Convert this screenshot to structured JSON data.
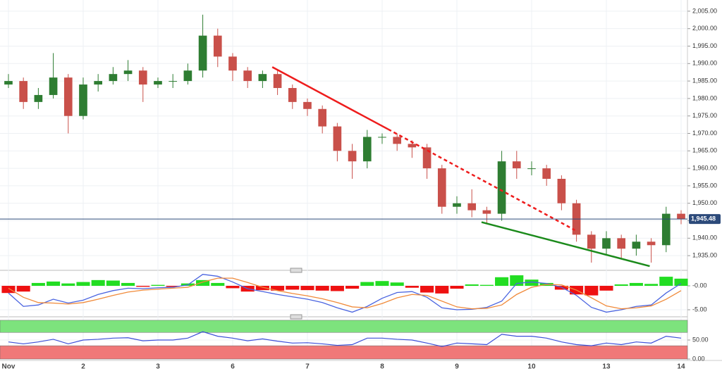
{
  "chart_data": [
    {
      "type": "candlestick",
      "x": [
        0,
        0.2,
        0.4,
        0.6,
        0.8,
        1,
        1.2,
        1.4,
        1.6,
        1.8,
        2,
        2.2,
        2.4,
        2.6,
        2.8,
        3,
        3.2,
        3.4,
        3.6,
        3.8,
        4,
        4.2,
        4.4,
        4.6,
        4.8,
        5,
        5.2,
        5.4,
        5.6,
        5.8,
        6,
        6.2,
        6.4,
        6.6,
        6.8,
        7,
        7.2,
        7.4,
        7.6,
        7.8,
        8,
        8.2,
        8.4,
        8.6,
        8.8,
        9
      ],
      "open": [
        1984,
        1985,
        1979,
        1981,
        1986,
        1975,
        1984,
        1985,
        1987,
        1988,
        1984,
        1985,
        1985,
        1988,
        1998,
        1992,
        1988,
        1985,
        1987,
        1983,
        1979,
        1977,
        1972,
        1965,
        1962,
        1969,
        1969,
        1967,
        1966,
        1960,
        1949,
        1950,
        1948,
        1947,
        1962,
        1960,
        1960,
        1957,
        1950,
        1941,
        1937,
        1940,
        1937,
        1939,
        1938,
        1947
      ],
      "high": [
        1987,
        1986,
        1983,
        1993,
        1987,
        1986,
        1987,
        1989,
        1991,
        1989,
        1986,
        1987,
        1990,
        2004,
        2000,
        1993,
        1989,
        1988,
        1988,
        1984,
        1980,
        1978,
        1973,
        1967,
        1971,
        1970,
        1970,
        1968,
        1967,
        1961,
        1952,
        1954,
        1949,
        1965,
        1965,
        1962,
        1961,
        1958,
        1951,
        1942,
        1942,
        1941,
        1941,
        1940,
        1949,
        1948
      ],
      "low": [
        1983,
        1977,
        1977,
        1980,
        1970,
        1974,
        1982,
        1984,
        1985,
        1979,
        1983,
        1983,
        1984,
        1986,
        1989,
        1985,
        1983,
        1983,
        1981,
        1977,
        1975,
        1970,
        1962,
        1957,
        1960,
        1967,
        1965,
        1963,
        1957,
        1947,
        1947,
        1946,
        1944,
        1945,
        1957,
        1958,
        1955,
        1948,
        1939,
        1933,
        1935,
        1934,
        1935,
        1933,
        1936,
        1944
      ],
      "close": [
        1985,
        1979,
        1981,
        1986,
        1975,
        1984,
        1985,
        1987,
        1988,
        1984,
        1985,
        1985,
        1988,
        1998,
        1992,
        1988,
        1985,
        1987,
        1983,
        1979,
        1977,
        1972,
        1965,
        1962,
        1969,
        1969,
        1967,
        1966,
        1960,
        1949,
        1950,
        1948,
        1947,
        1962,
        1960,
        1960,
        1957,
        1950,
        1941,
        1937,
        1940,
        1937,
        1939,
        1938,
        1947,
        1945.48
      ],
      "up_color": "#2e7d32",
      "down_color": "#c9504a",
      "xlim": [
        -0.113,
        9.085
      ],
      "xticks": [
        {
          "value": 0,
          "label": "Nov"
        },
        {
          "value": 1,
          "label": "2"
        },
        {
          "value": 2,
          "label": "3"
        },
        {
          "value": 3,
          "label": "6"
        },
        {
          "value": 4,
          "label": "7"
        },
        {
          "value": 5,
          "label": "8"
        },
        {
          "value": 6,
          "label": "9"
        },
        {
          "value": 7,
          "label": "10"
        },
        {
          "value": 8,
          "label": "13"
        },
        {
          "value": 9,
          "label": "14"
        }
      ],
      "ylim": [
        1931.2,
        2008.2
      ],
      "yticks": [
        {
          "value": 1935,
          "label": "1,935.00"
        },
        {
          "value": 1940,
          "label": "1,940.00"
        },
        {
          "value": 1945,
          "label": "1,945.00"
        },
        {
          "value": 1950,
          "label": "1,950.00"
        },
        {
          "value": 1955,
          "label": "1,955.00"
        },
        {
          "value": 1960,
          "label": "1,960.00"
        },
        {
          "value": 1965,
          "label": "1,965.00"
        },
        {
          "value": 1970,
          "label": "1,970.00"
        },
        {
          "value": 1975,
          "label": "1,975.00"
        },
        {
          "value": 1980,
          "label": "1,980.00"
        },
        {
          "value": 1985,
          "label": "1,985.00"
        },
        {
          "value": 1990,
          "label": "1,990.00"
        },
        {
          "value": 1995,
          "label": "1,995.00"
        },
        {
          "value": 2000,
          "label": "2,000.00"
        },
        {
          "value": 2005,
          "label": "2,005.00"
        }
      ],
      "grid": true,
      "last": 1945.48,
      "last_label": "1,945.48",
      "last_color": "#2c4a7a",
      "lines": [
        {
          "x": [
            3.53,
            5.08
          ],
          "y": [
            1989,
            1971.2
          ],
          "color": "#ee1c1c",
          "dashed": false
        },
        {
          "x": [
            5.08,
            7.58
          ],
          "y": [
            1971.2,
            1942.3
          ],
          "color": "#ee1c1c",
          "dashed": true
        },
        {
          "x": [
            6.33,
            8.58
          ],
          "y": [
            1944.6,
            1932
          ],
          "color": "#1b8a1b",
          "dashed": false
        }
      ]
    },
    {
      "type": "macd",
      "x": [
        0,
        0.2,
        0.4,
        0.6,
        0.8,
        1,
        1.2,
        1.4,
        1.6,
        1.8,
        2,
        2.2,
        2.4,
        2.6,
        2.8,
        3,
        3.2,
        3.4,
        3.6,
        3.8,
        4,
        4.2,
        4.4,
        4.6,
        4.8,
        5,
        5.2,
        5.4,
        5.6,
        5.8,
        6,
        6.2,
        6.4,
        6.6,
        6.8,
        7,
        7.2,
        7.4,
        7.6,
        7.8,
        8,
        8.2,
        8.4,
        8.6,
        8.8,
        9
      ],
      "histogram": [
        -1.5,
        -1.2,
        0.6,
        0.9,
        0.5,
        0.8,
        1.2,
        1.1,
        0.6,
        -0.2,
        0.2,
        -0.2,
        0.5,
        1.2,
        0.6,
        -0.5,
        -1.2,
        -0.9,
        -1.0,
        -0.8,
        -0.9,
        -1.0,
        -1.1,
        -0.6,
        0.8,
        1.0,
        0.7,
        -0.4,
        -1.4,
        -1.6,
        -0.6,
        0.3,
        0.2,
        1.8,
        2.2,
        1.3,
        0.6,
        -0.8,
        -1.8,
        -2.0,
        -1.0,
        0.3,
        0.6,
        0.4,
        1.9,
        1.5
      ],
      "pos_color": "#22dd22",
      "neg_color": "#ee1111",
      "series": [
        {
          "color": "#4a64e0",
          "values": [
            -1.5,
            -4.3,
            -4.0,
            -2.8,
            -3.6,
            -3.0,
            -1.8,
            -1.0,
            -0.5,
            -0.6,
            -0.4,
            -0.3,
            0.2,
            2.4,
            2.0,
            0.8,
            -0.6,
            -1.2,
            -1.8,
            -2.3,
            -2.8,
            -3.5,
            -4.6,
            -5.5,
            -4.3,
            -2.6,
            -1.4,
            -1.2,
            -2.4,
            -4.6,
            -5.0,
            -4.9,
            -4.5,
            -3.2,
            0.5,
            0.8,
            0.5,
            -0.3,
            -2.0,
            -4.5,
            -5.5,
            -5.0,
            -4.3,
            -4.0,
            -1.5,
            0.5
          ]
        },
        {
          "color": "#f08a3a",
          "values": [
            -0.5,
            -2.4,
            -3.5,
            -3.6,
            -3.8,
            -3.5,
            -2.8,
            -2.0,
            -1.3,
            -0.9,
            -0.7,
            -0.5,
            -0.3,
            0.8,
            1.6,
            1.6,
            0.7,
            -0.3,
            -1.0,
            -1.6,
            -2.1,
            -2.7,
            -3.5,
            -4.4,
            -4.6,
            -3.7,
            -2.5,
            -1.8,
            -2.0,
            -3.2,
            -4.4,
            -4.8,
            -4.7,
            -4.0,
            -1.8,
            -0.3,
            0.3,
            0.2,
            -0.9,
            -2.5,
            -4.2,
            -4.8,
            -4.6,
            -4.2,
            -2.8,
            -1.0
          ]
        }
      ],
      "ylim": [
        -6.03,
        2.65
      ],
      "yticks": [
        {
          "value": 0,
          "label": "-0.00"
        },
        {
          "value": -5,
          "label": "-5.00"
        }
      ]
    },
    {
      "type": "rsi",
      "x": [
        0,
        0.2,
        0.4,
        0.6,
        0.8,
        1,
        1.2,
        1.4,
        1.6,
        1.8,
        2,
        2.2,
        2.4,
        2.6,
        2.8,
        3,
        3.2,
        3.4,
        3.6,
        3.8,
        4,
        4.2,
        4.4,
        4.6,
        4.8,
        5,
        5.2,
        5.4,
        5.6,
        5.8,
        6,
        6.2,
        6.4,
        6.6,
        6.8,
        7,
        7.2,
        7.4,
        7.6,
        7.8,
        8,
        8.2,
        8.4,
        8.6,
        8.8,
        9
      ],
      "series": [
        {
          "color": "#3c4fd8",
          "values": [
            45,
            40,
            45,
            52,
            40,
            50,
            52,
            55,
            56,
            48,
            50,
            50,
            55,
            72,
            60,
            55,
            48,
            53,
            47,
            42,
            43,
            40,
            36,
            38,
            55,
            55,
            52,
            50,
            42,
            33,
            42,
            40,
            38,
            65,
            60,
            60,
            55,
            45,
            38,
            35,
            42,
            38,
            45,
            42,
            60,
            55
          ]
        }
      ],
      "bands": [
        {
          "from": 70,
          "to": 102,
          "color": "#7de37d"
        },
        {
          "from": 0,
          "to": 35,
          "color": "#f07878"
        }
      ],
      "ylim": [
        -3.7,
        105.6
      ],
      "yticks": [
        {
          "value": 50,
          "label": "50.00"
        },
        {
          "value": 0,
          "label": "0.00"
        }
      ]
    }
  ]
}
